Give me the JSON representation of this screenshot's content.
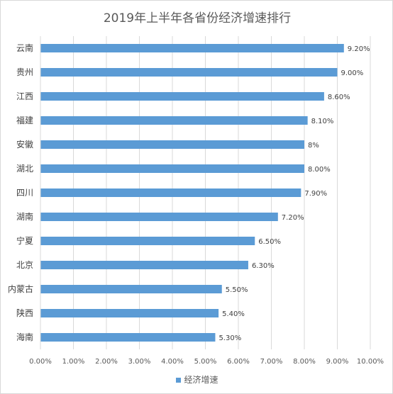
{
  "chart_data": {
    "type": "bar",
    "orientation": "horizontal",
    "title": "2019年上半年各省份经济增速排行",
    "categories": [
      "云南",
      "贵州",
      "江西",
      "福建",
      "安徽",
      "湖北",
      "四川",
      "湖南",
      "宁夏",
      "北京",
      "内蒙古",
      "陕西",
      "海南"
    ],
    "series": [
      {
        "name": "经济增速",
        "values": [
          9.2,
          9.0,
          8.6,
          8.1,
          8.0,
          8.0,
          7.9,
          7.2,
          6.5,
          6.3,
          5.5,
          5.4,
          5.3
        ],
        "data_labels": [
          "9.20%",
          "9.00%",
          "8.60%",
          "8.10%",
          "8%",
          "8.00%",
          "7.90%",
          "7.20%",
          "6.50%",
          "6.30%",
          "5.50%",
          "5.40%",
          "5.30%"
        ]
      }
    ],
    "xlim": [
      0,
      10
    ],
    "x_ticks": [
      0,
      1,
      2,
      3,
      4,
      5,
      6,
      7,
      8,
      9,
      10
    ],
    "x_tick_labels": [
      "0.00%",
      "1.00%",
      "2.00%",
      "3.00%",
      "4.00%",
      "5.00%",
      "6.00%",
      "7.00%",
      "8.00%",
      "9.00%",
      "10.00%"
    ],
    "grid": "vertical",
    "legend": "bottom",
    "colors": {
      "bar": "#5b9bd5",
      "grid": "#d9d9d9",
      "text": "#595959",
      "axis_text": "#404040"
    }
  }
}
